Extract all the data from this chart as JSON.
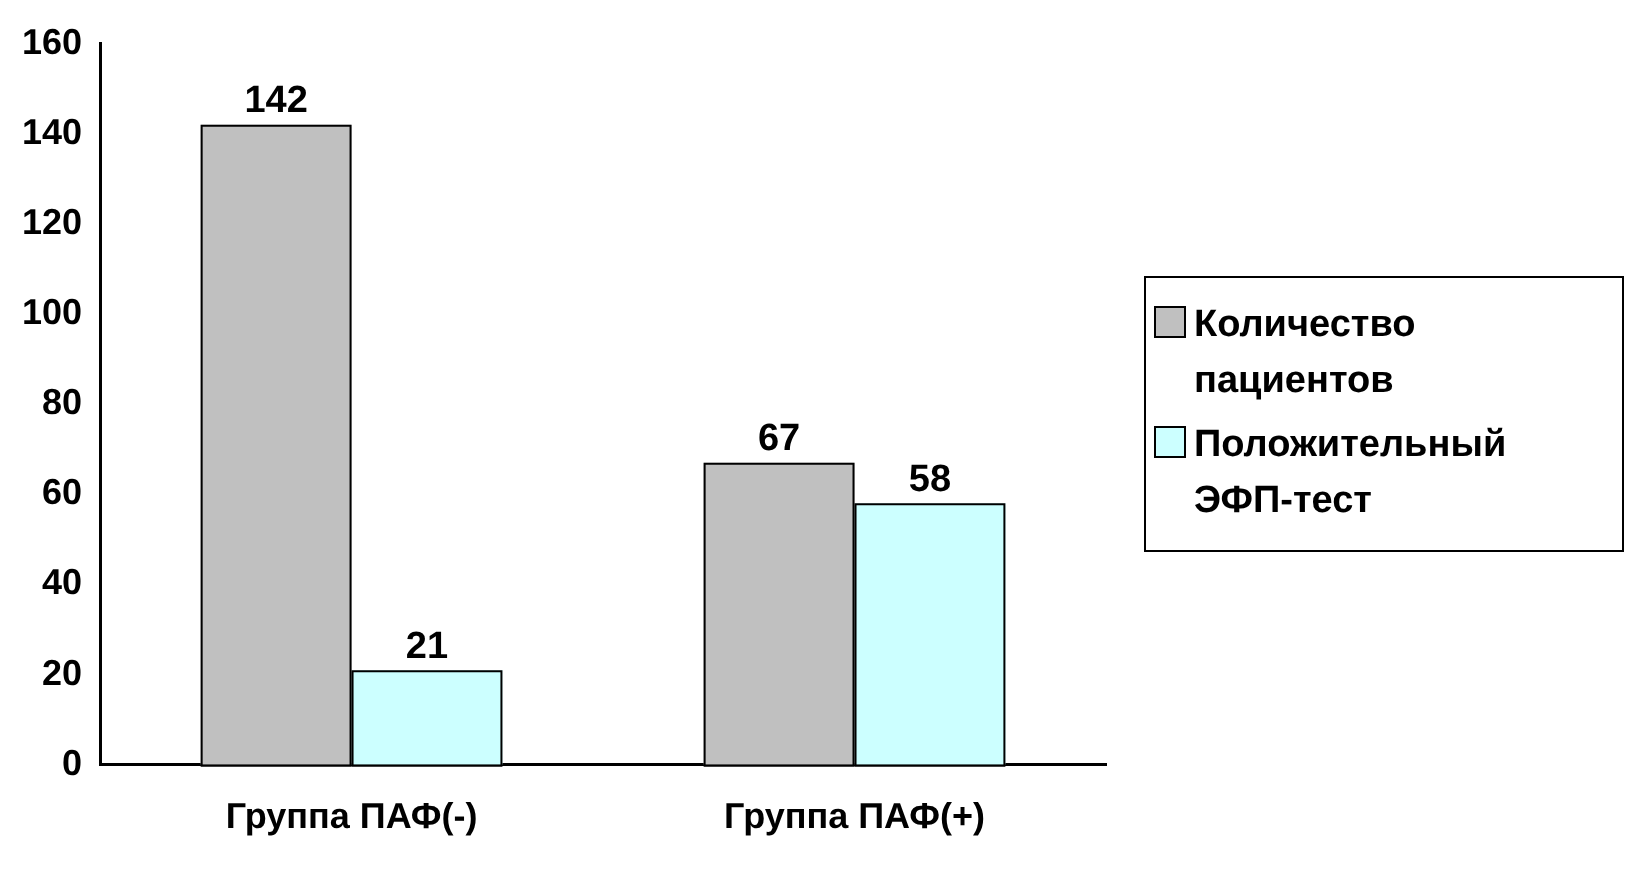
{
  "chart_data": {
    "type": "bar",
    "categories": [
      "Группа ПАФ(-)",
      "Группа ПАФ(+)"
    ],
    "series": [
      {
        "name": "Количество пациентов",
        "color": "#c0c0c0",
        "values": [
          142,
          67
        ]
      },
      {
        "name": "Положительный ЭФП-тест",
        "color": "#ccffff",
        "values": [
          21,
          58
        ]
      }
    ],
    "ylim": [
      0,
      160
    ],
    "yticks": [
      0,
      20,
      40,
      60,
      80,
      100,
      120,
      140,
      160
    ],
    "grid": false,
    "legend": "right",
    "data_labels": true
  }
}
